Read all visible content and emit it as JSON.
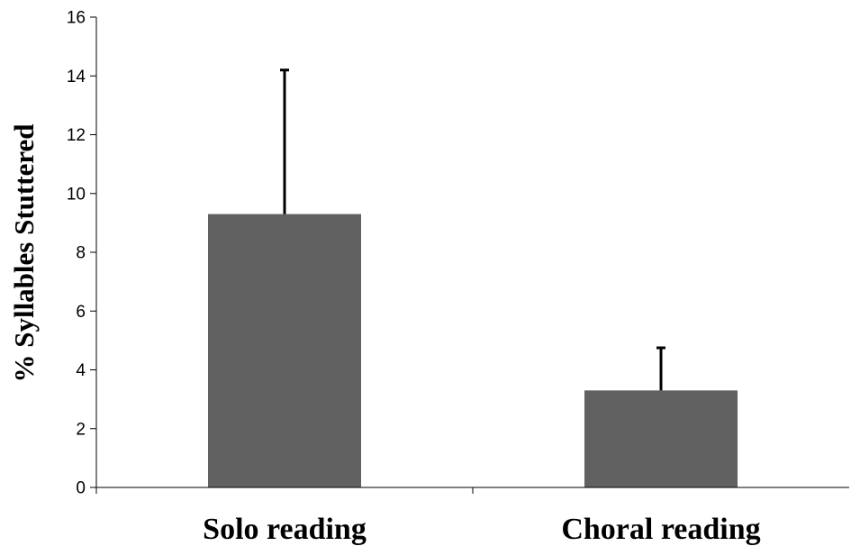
{
  "chart_data": {
    "type": "bar",
    "title": "",
    "xlabel": "",
    "ylabel": "% Syllables Stuttered",
    "categories": [
      "Solo reading",
      "Choral reading"
    ],
    "values": [
      9.3,
      3.3
    ],
    "error_upper": [
      14.2,
      4.75
    ],
    "ylim": [
      0,
      16
    ],
    "y_ticks": [
      "0",
      "2",
      "4",
      "6",
      "8",
      "10",
      "12",
      "14",
      "16"
    ],
    "grid": false,
    "legend": "none",
    "bar_color": "#616161"
  }
}
